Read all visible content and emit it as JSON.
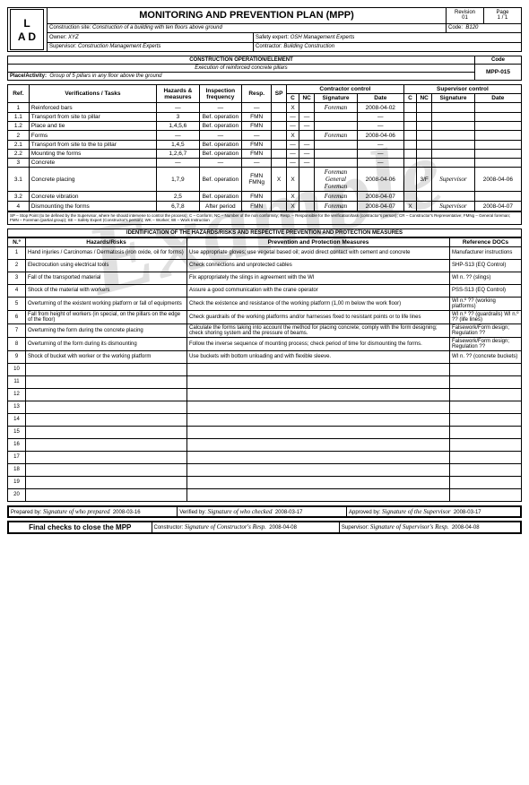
{
  "header": {
    "title": "MONITORING AND PREVENTION PLAN (MPP)",
    "logo_top": "L",
    "logo_bottom": "A D",
    "revision_label": "Revision",
    "revision": "01",
    "page_label": "Page",
    "page": "1 / 1",
    "site_label": "Construction site:",
    "site": "Construction of a building with ten floors above ground",
    "code_label": "Code:",
    "code": "B120",
    "owner_label": "Owner:",
    "owner": "XYZ",
    "safety_label": "Safety expert:",
    "safety": "OSH Management Experts",
    "supervisor_label": "Supervisor:",
    "supervisor": "Construction Management Experts",
    "contractor_label": "Contractor:",
    "contractor": "Building Construction"
  },
  "operation": {
    "title": "CONSTRUCTION OPERATION/ELEMENT",
    "subtitle": "Execution of reinforced concrete pillars",
    "code_label": "Code",
    "code": "MPP-015",
    "place_label": "Place/Activity:",
    "place": "Group of 5 pillars in any floor above the ground"
  },
  "cols": {
    "ref": "Ref.",
    "verif": "Verifications / Tasks",
    "hazards": "Hazards & measures",
    "insp": "Inspection frequency",
    "resp": "Resp.",
    "sp": "SP",
    "cc": "Contractor control",
    "sc": "Supervisor control",
    "c": "C",
    "nc": "NC",
    "sig": "Signature",
    "date": "Date"
  },
  "rows": [
    {
      "ref": "1",
      "task": "Reinforced bars",
      "haz": "—",
      "insp": "—",
      "resp": "—",
      "sp": "",
      "cc_c": "X",
      "cc_nc": "",
      "cc_sig": "Foreman",
      "cc_date": "2008-04-02",
      "sc_c": "",
      "sc_nc": "",
      "sc_sig": "",
      "sc_date": ""
    },
    {
      "ref": "1.1",
      "task": "Transport from site to pillar",
      "haz": "3",
      "insp": "Bef. operation",
      "resp": "FMN",
      "sp": "",
      "cc_c": "—",
      "cc_nc": "—",
      "cc_sig": "",
      "cc_date": "—",
      "sc_c": "",
      "sc_nc": "",
      "sc_sig": "",
      "sc_date": ""
    },
    {
      "ref": "1.2",
      "task": "Place and tie",
      "haz": "1,4,5,6",
      "insp": "Bef. operation",
      "resp": "FMN",
      "sp": "",
      "cc_c": "—",
      "cc_nc": "—",
      "cc_sig": "",
      "cc_date": "—",
      "sc_c": "",
      "sc_nc": "",
      "sc_sig": "",
      "sc_date": ""
    },
    {
      "ref": "2",
      "task": "Forms",
      "haz": "—",
      "insp": "—",
      "resp": "—",
      "sp": "",
      "cc_c": "X",
      "cc_nc": "",
      "cc_sig": "Foreman",
      "cc_date": "2008-04-06",
      "sc_c": "",
      "sc_nc": "",
      "sc_sig": "",
      "sc_date": ""
    },
    {
      "ref": "2.1",
      "task": "Transport from site to the to pillar",
      "haz": "1,4,5",
      "insp": "Bef. operation",
      "resp": "FMN",
      "sp": "",
      "cc_c": "—",
      "cc_nc": "—",
      "cc_sig": "",
      "cc_date": "—",
      "sc_c": "",
      "sc_nc": "",
      "sc_sig": "",
      "sc_date": ""
    },
    {
      "ref": "2.2",
      "task": "Mounting the forms",
      "haz": "1,2,6,7",
      "insp": "Bef. operation",
      "resp": "FMN",
      "sp": "",
      "cc_c": "—",
      "cc_nc": "—",
      "cc_sig": "",
      "cc_date": "—",
      "sc_c": "",
      "sc_nc": "",
      "sc_sig": "",
      "sc_date": ""
    },
    {
      "ref": "3",
      "task": "Concrete",
      "haz": "—",
      "insp": "—",
      "resp": "—",
      "sp": "",
      "cc_c": "—",
      "cc_nc": "—",
      "cc_sig": "",
      "cc_date": "—",
      "sc_c": "",
      "sc_nc": "",
      "sc_sig": "",
      "sc_date": ""
    },
    {
      "ref": "3.1",
      "task": "Concrete placing",
      "haz": "1,7,9",
      "insp": "Bef. operation",
      "resp": "FMN FMNg",
      "sp": "X",
      "cc_c": "X",
      "cc_nc": "",
      "cc_sig": "Foreman General Foreman",
      "cc_date": "2008-04-06",
      "sc_c": "",
      "sc_nc": "3/F",
      "sc_sig": "Supervisor",
      "sc_date": "2008-04-06"
    },
    {
      "ref": "3.2",
      "task": "Concrete vibration",
      "haz": "2,5",
      "insp": "Bef. operation",
      "resp": "FMN",
      "sp": "",
      "cc_c": "X",
      "cc_nc": "",
      "cc_sig": "Foreman",
      "cc_date": "2008-04-07",
      "sc_c": "",
      "sc_nc": "",
      "sc_sig": "",
      "sc_date": ""
    },
    {
      "ref": "4",
      "task": "Dismounting the forms",
      "haz": "6,7,8",
      "insp": "After period",
      "resp": "FMN",
      "sp": "",
      "cc_c": "X",
      "cc_nc": "",
      "cc_sig": "Foreman",
      "cc_date": "2008-04-07",
      "sc_c": "X",
      "sc_nc": "",
      "sc_sig": "Supervisor",
      "sc_date": "2008-04-07"
    }
  ],
  "legend": "SP – Stop Point (to be defined by the Supervisor, where he should intervene to control the process);  C – Conform; NC – Number of the non conformity; Resp. – Responsible for the verification/task (contractor's person); CR – Constructor's Representative; FMNg – General foreman; FMN – Foreman (partial group); SE – Safety Expert (Constructor's person); WK – Worker; WI – Work Instruction",
  "ident_title": "IDENTIFICATION OF THE HAZARDS/RISKS AND RESPECTIVE PREVENTION AND PROTECTION MEASURES",
  "ident_cols": {
    "n": "N.º",
    "hr": "Hazards/Risks",
    "pm": "Prevention and Protection Measures",
    "ref": "Reference DOCs"
  },
  "hazards": [
    {
      "n": "1",
      "hr": "Hand injuries / Carcinomas / Dermatosis (iron oxide, oil for forms)",
      "pm": "Use appropriate gloves; use vegetal based oil; avoid direct contact with cement and concrete",
      "ref": "Manufacturer instructions"
    },
    {
      "n": "2",
      "hr": "Electrocution using electrical tools",
      "pm": "Check connections and unprotected cables",
      "ref": "SHP-S13 (EQ Control)"
    },
    {
      "n": "3",
      "hr": "Fall of the transported material",
      "pm": "Fix appropriately the slings in agreement with the WI",
      "ref": "WI n. ?? (slings)"
    },
    {
      "n": "4",
      "hr": "Shock of the material with workers",
      "pm": "Assure a good communication with the crane operator",
      "ref": "PSS-S13 (EQ Control)"
    },
    {
      "n": "5",
      "hr": "Overturning of the existent working platform or fall of equipments",
      "pm": "Check the existence and resistance of the working platform (1,00 m below the work floor)",
      "ref": "WI n.º ?? (working platforms)"
    },
    {
      "n": "6",
      "hr": "Fall from height of workers  (in special, on the pillars on the edge of the floor)",
      "pm": "Check guardrails of the working platforms and/or harnesses fixed to resistant points or to life lines",
      "ref": "WI n.º ?? (guardrails) WI n.º ?? (life lines)"
    },
    {
      "n": "7",
      "hr": "Overturning the form during the concrete placing",
      "pm": "Calculate the forms taking into account the method for placing concrete; comply with the form designing; check shoring system and the pressure of beams.",
      "ref": "Falsework/Form design; Regulation ??"
    },
    {
      "n": "8",
      "hr": "Overturning of the form during its dismounting",
      "pm": "Follow the inverse sequence of mounting process; check period of time for dismounting the forms.",
      "ref": "Falsework/Form design; Regulation ??"
    },
    {
      "n": "9",
      "hr": "Shock of bucket with worker or the working platform",
      "pm": "Use buckets with bottom unloading and with flexible sleeve.",
      "ref": "WI n. ?? (concrete buckets)"
    },
    {
      "n": "10",
      "hr": "",
      "pm": "",
      "ref": ""
    },
    {
      "n": "11",
      "hr": "",
      "pm": "",
      "ref": ""
    },
    {
      "n": "12",
      "hr": "",
      "pm": "",
      "ref": ""
    },
    {
      "n": "13",
      "hr": "",
      "pm": "",
      "ref": ""
    },
    {
      "n": "14",
      "hr": "",
      "pm": "",
      "ref": ""
    },
    {
      "n": "15",
      "hr": "",
      "pm": "",
      "ref": ""
    },
    {
      "n": "16",
      "hr": "",
      "pm": "",
      "ref": ""
    },
    {
      "n": "17",
      "hr": "",
      "pm": "",
      "ref": ""
    },
    {
      "n": "18",
      "hr": "",
      "pm": "",
      "ref": ""
    },
    {
      "n": "19",
      "hr": "",
      "pm": "",
      "ref": ""
    },
    {
      "n": "20",
      "hr": "",
      "pm": "",
      "ref": ""
    }
  ],
  "footer": {
    "prepared_label": "Prepared by:",
    "prepared_sig": "Signature of who prepared",
    "prepared_date": "2008-03-16",
    "verified_label": "Verified by:",
    "verified_sig": "Signature of who checked",
    "verified_date": "2008-03-17",
    "approved_label": "Approved by:",
    "approved_sig": "Signature of the Supervisor",
    "approved_date": "2008-03-17",
    "final_label": "Final checks to close the MPP",
    "constructor_label": "Constructor:",
    "constructor_sig": "Signature of Constructor's Resp.",
    "constructor_date": "2008-04-08",
    "fsupervisor_label": "Supervisor:",
    "fsupervisor_sig": "Signature of Supervisor's Resp.",
    "fsupervisor_date": "2008-04-08"
  },
  "watermark": "Example"
}
